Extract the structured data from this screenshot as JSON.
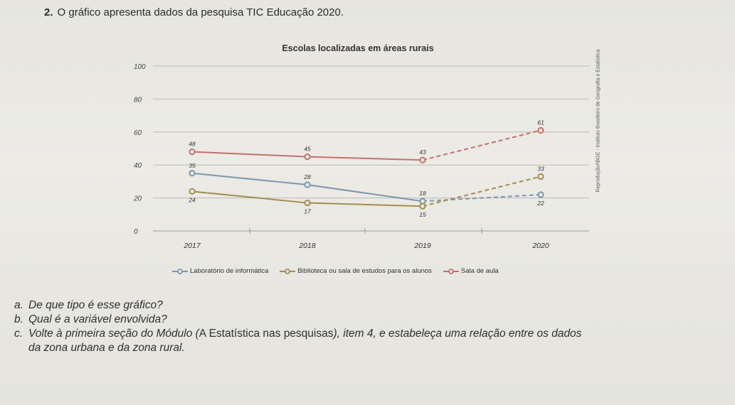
{
  "question": {
    "number": "2.",
    "text": "O gráfico apresenta dados da pesquisa TIC Educação 2020."
  },
  "credit": "Reprodução/IBGE - Instituto Brasileiro de Geografia e Estatística",
  "chart_data": {
    "type": "line",
    "title": "Escolas localizadas em áreas rurais",
    "xlabel": "",
    "ylabel": "",
    "categories": [
      "2017",
      "2018",
      "2019",
      "2020"
    ],
    "y_ticks": [
      0,
      20,
      40,
      60,
      80,
      100
    ],
    "ylim": [
      0,
      100
    ],
    "grid": true,
    "legend_position": "bottom",
    "series": [
      {
        "name": "Laboratório de informática",
        "color": "#7d97ad",
        "values": [
          35,
          28,
          18,
          22
        ],
        "labels": [
          "35",
          "28",
          "18",
          "22"
        ],
        "label_side": [
          "above",
          "above",
          "above",
          "below"
        ]
      },
      {
        "name": "Biblioteca ou sala de estudos para os alunos",
        "color": "#a38d52",
        "values": [
          24,
          17,
          15,
          33
        ],
        "labels": [
          "24",
          "17",
          "15",
          "33"
        ],
        "label_side": [
          "below",
          "below",
          "below",
          "above"
        ]
      },
      {
        "name": "Sala de aula",
        "color": "#c4716b",
        "values": [
          48,
          45,
          43,
          61
        ],
        "labels": [
          "48",
          "45",
          "43",
          "61"
        ],
        "label_side": [
          "above",
          "above",
          "above",
          "above"
        ]
      }
    ]
  },
  "questions": [
    {
      "letter": "a.",
      "text": "De que tipo é esse gráfico?"
    },
    {
      "letter": "b.",
      "text": "Qual é a variável envolvida?"
    },
    {
      "letter": "c.",
      "text_before": "Volte à primeira seção do Módulo (",
      "text_italic": "A Estatística nas pesquisas",
      "text_after": "), item 4, e estabeleça uma relação entre os dados",
      "text_cont": "da zona urbana e da zona rural."
    }
  ]
}
